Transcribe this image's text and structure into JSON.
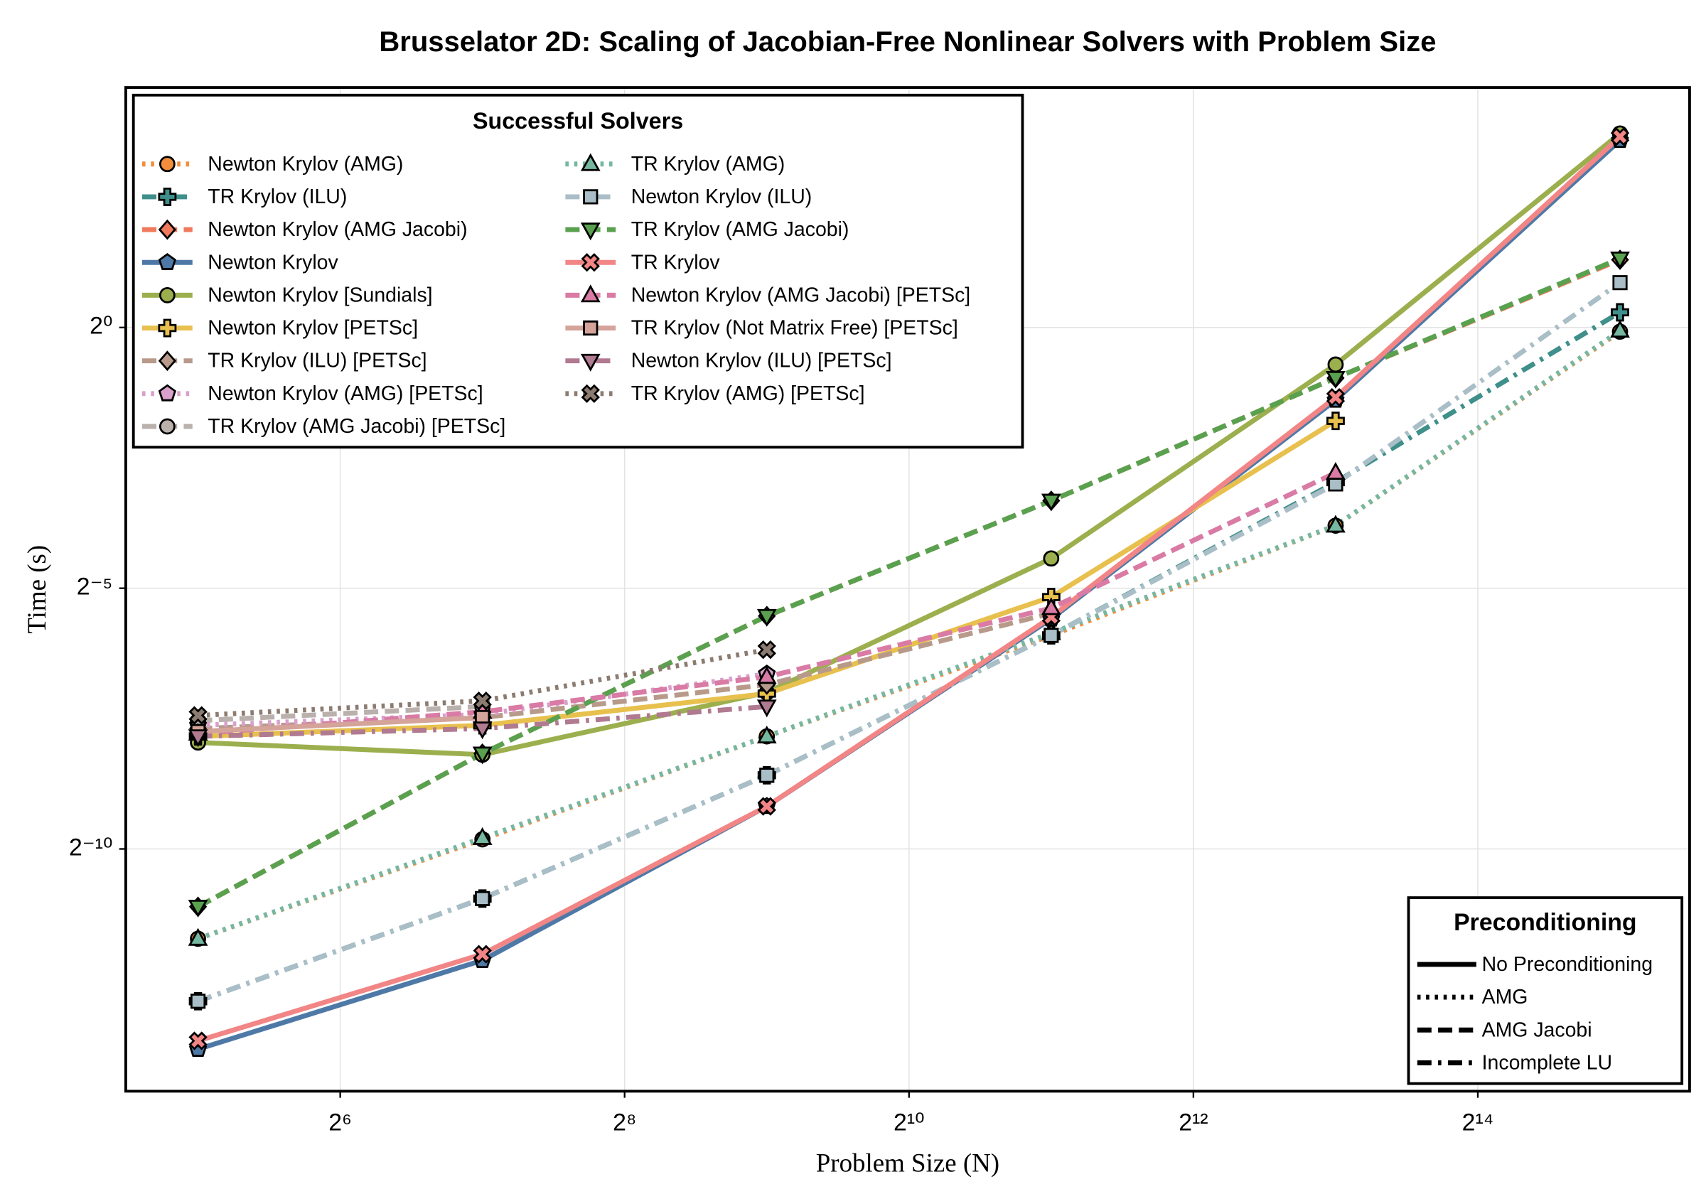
{
  "chart_data": {
    "type": "line",
    "title": "Brusselator 2D: Scaling of Jacobian-Free Nonlinear Solvers with Problem Size",
    "x_label": "Problem Size (N)",
    "y_label": "Time (s)",
    "xscale": "log2",
    "yscale": "log2",
    "x": [
      32,
      128,
      512,
      2048,
      8192,
      32768
    ],
    "xlim": [
      22.5,
      46000
    ],
    "ylim": [
      3.9e-05,
      24.3
    ],
    "xticks": [
      {
        "value": 64,
        "label": "2⁶"
      },
      {
        "value": 256,
        "label": "2⁸"
      },
      {
        "value": 1024,
        "label": "2¹⁰"
      },
      {
        "value": 4096,
        "label": "2¹²"
      },
      {
        "value": 16384,
        "label": "2¹⁴"
      }
    ],
    "yticks": [
      {
        "value": 0.0009765625,
        "label": "2⁻¹⁰"
      },
      {
        "value": 0.03125,
        "label": "2⁻⁵"
      },
      {
        "value": 1,
        "label": "2⁰"
      }
    ],
    "grid": true,
    "legend": {
      "title": "Successful Solvers",
      "loc": "upper left",
      "columns": 2
    },
    "series": [
      {
        "name": "Newton Krylov (AMG)",
        "color": "#f28e3b",
        "dash": "dot",
        "marker": "circle",
        "values": [
          0.000296,
          0.00111,
          0.00436,
          0.0167,
          0.0718,
          0.946
        ]
      },
      {
        "name": "TR Krylov (ILU)",
        "color": "#3f8f8a",
        "dash": "dashdot",
        "marker": "plus",
        "values": [
          0.000129,
          0.000505,
          0.0026,
          0.0167,
          0.128,
          1.223
        ]
      },
      {
        "name": "Newton Krylov (AMG Jacobi)",
        "color": "#f07a5c",
        "dash": "dash",
        "marker": "diamond",
        "values": [
          0.000453,
          0.00347,
          0.0216,
          0.1,
          0.511,
          2.46
        ]
      },
      {
        "name": "Newton Krylov",
        "color": "#4e79a7",
        "dash": "solid",
        "marker": "pentagon",
        "values": [
          6.82e-05,
          0.000222,
          0.00172,
          0.0208,
          0.381,
          12.04
        ]
      },
      {
        "name": "Newton Krylov [Sundials]",
        "color": "#9caf4e",
        "dash": "solid",
        "marker": "circle",
        "values": [
          0.00402,
          0.00342,
          0.00781,
          0.0464,
          0.611,
          13.18
        ]
      },
      {
        "name": "Newton Krylov [PETSc]",
        "color": "#e8c04e",
        "dash": "solid",
        "marker": "plus",
        "values": [
          0.00436,
          0.00505,
          0.0077,
          0.0278,
          0.289,
          null
        ]
      },
      {
        "name": "TR Krylov (ILU) [PETSc]",
        "color": "#b89a8a",
        "dash": "dash",
        "marker": "diamond",
        "values": [
          0.00484,
          0.0056,
          0.00867,
          0.0224,
          null,
          null
        ]
      },
      {
        "name": "Newton Krylov (AMG) [PETSc]",
        "color": "#d9a0cc",
        "dash": "dot",
        "marker": "pentagon",
        "values": [
          0.00505,
          0.00584,
          0.01,
          null,
          null,
          null
        ]
      },
      {
        "name": "TR Krylov (AMG Jacobi) [PETSc]",
        "color": "#bab0ac",
        "dash": "dash",
        "marker": "circle",
        "values": [
          0.00537,
          0.00648,
          null,
          null,
          null,
          null
        ]
      },
      {
        "name": "TR Krylov (AMG)",
        "color": "#76b7a0",
        "dash": "dot",
        "marker": "triangle-up",
        "values": [
          0.000296,
          0.00113,
          0.00436,
          0.0172,
          0.0718,
          0.959
        ]
      },
      {
        "name": "Newton Krylov (ILU)",
        "color": "#a9bec6",
        "dash": "dashdot",
        "marker": "square",
        "values": [
          0.000129,
          0.000505,
          0.0026,
          0.0167,
          0.125,
          1.815
        ]
      },
      {
        "name": "TR Krylov (AMG Jacobi)",
        "color": "#59a14f",
        "dash": "dash",
        "marker": "triangle-down",
        "values": [
          0.000453,
          0.00347,
          0.0216,
          0.1,
          0.511,
          2.5
        ]
      },
      {
        "name": "TR Krylov",
        "color": "#f28585",
        "dash": "solid",
        "marker": "x",
        "values": [
          7.62e-05,
          0.000241,
          0.00172,
          0.0213,
          0.395,
          12.64
        ]
      },
      {
        "name": "Newton Krylov (AMG Jacobi) [PETSc]",
        "color": "#d97ba5",
        "dash": "dash",
        "marker": "triangle-up",
        "values": [
          0.00452,
          0.00605,
          0.00962,
          0.024,
          0.145,
          null
        ]
      },
      {
        "name": "TR Krylov (Not Matrix Free) [PETSc]",
        "color": "#d4a39a",
        "dash": "solid",
        "marker": "square",
        "values": [
          0.00465,
          0.0056,
          null,
          null,
          null,
          null
        ]
      },
      {
        "name": "Newton Krylov (ILU) [PETSc]",
        "color": "#b07a90",
        "dash": "dashdot",
        "marker": "triangle-down",
        "values": [
          0.00436,
          0.00484,
          0.00648,
          null,
          null,
          null
        ]
      },
      {
        "name": "TR Krylov (AMG) [PETSc]",
        "color": "#8c7b70",
        "dash": "dot",
        "marker": "x",
        "values": [
          0.00576,
          0.00699,
          0.0138,
          null,
          null,
          null
        ]
      }
    ],
    "style_legend": {
      "title": "Preconditioning",
      "loc": "lower right",
      "color": "#000000",
      "entries": [
        {
          "label": "No Preconditioning",
          "dash": "solid"
        },
        {
          "label": "AMG",
          "dash": "dot"
        },
        {
          "label": "AMG Jacobi",
          "dash": "dash"
        },
        {
          "label": "Incomplete LU",
          "dash": "dashdot"
        }
      ]
    }
  }
}
